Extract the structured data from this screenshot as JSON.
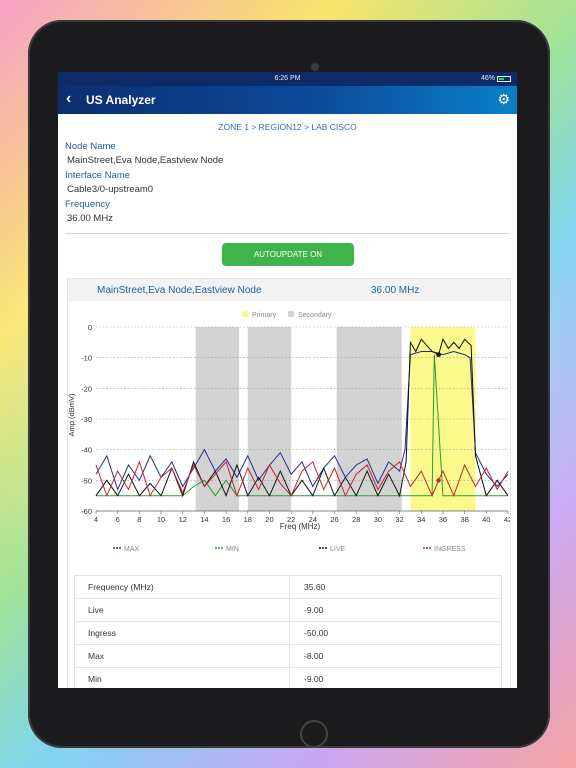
{
  "status_bar": {
    "time": "6:26 PM",
    "battery": "46%"
  },
  "nav": {
    "back_glyph": "‹",
    "title": "US Analyzer",
    "settings_icon": "gear-icon"
  },
  "breadcrumb": "ZONE 1 > REGION12 > LAB CISCO",
  "details": {
    "node_name_label": "Node Name",
    "node_name_value": "MainStreet,Eva Node,Eastview Node",
    "interface_label": "Interface Name",
    "interface_value": "Cable3/0-upstream0",
    "frequency_label": "Frequency",
    "frequency_value": "36.00 MHz"
  },
  "autoupdate_label": "AUTOUPDATE ON",
  "card": {
    "node": "MainStreet,Eva Node,Eastview Node",
    "frequency": "36.00 MHz"
  },
  "colors": {
    "max": "#1f2f8f",
    "min": "#2e9b3a",
    "live": "#111111",
    "ingress": "#c0282f",
    "primary": "#fbf98b",
    "secondary": "#d3d3d3",
    "accent": "#3db54a"
  },
  "chart_data": {
    "type": "line",
    "xlabel": "Freq (MHz)",
    "ylabel": "Amp (dBmV)",
    "xlim": [
      4,
      42
    ],
    "ylim": [
      -60,
      0
    ],
    "x_ticks": [
      "4",
      "6",
      "8",
      "10",
      "12",
      "14",
      "16",
      "18",
      "20",
      "22",
      "24",
      "26",
      "28",
      "30",
      "32",
      "34",
      "36",
      "38",
      "40",
      "42"
    ],
    "y_ticks": [
      "0",
      "-10",
      "-20",
      "-30",
      "-40",
      "-50",
      "-60"
    ],
    "band_legend": [
      {
        "name": "Primary"
      },
      {
        "name": "Secondary"
      }
    ],
    "bands": [
      {
        "type": "secondary",
        "from": 13.2,
        "to": 17.2
      },
      {
        "type": "secondary",
        "from": 18.0,
        "to": 22.0
      },
      {
        "type": "secondary",
        "from": 26.2,
        "to": 32.2
      },
      {
        "type": "primary",
        "from": 33.0,
        "to": 39.0
      }
    ],
    "marker": {
      "x": 35.6,
      "y": -9
    },
    "series": [
      {
        "name": "MAX",
        "key": "max",
        "x": [
          4,
          5,
          6,
          7,
          8,
          9,
          10,
          11,
          12,
          13,
          14,
          15,
          16,
          17,
          18,
          19,
          20,
          21,
          22,
          23,
          24,
          25,
          26,
          27,
          28,
          29,
          30,
          31,
          32,
          32.5,
          33,
          34,
          35,
          36,
          37,
          38,
          38.5,
          39,
          40,
          41,
          42
        ],
        "y": [
          -48,
          -42,
          -53,
          -45,
          -50,
          -42,
          -49,
          -44,
          -52,
          -46,
          -40,
          -47,
          -43,
          -49,
          -42,
          -50,
          -45,
          -41,
          -48,
          -44,
          -52,
          -46,
          -42,
          -49,
          -45,
          -43,
          -51,
          -44,
          -47,
          -40,
          -9,
          -8,
          -8,
          -9,
          -8,
          -9,
          -10,
          -41,
          -48,
          -52,
          -48
        ]
      },
      {
        "name": "MIN",
        "key": "min",
        "x": [
          4,
          6,
          8,
          10,
          12,
          13,
          14,
          15,
          16,
          17,
          18,
          20,
          22,
          24,
          26,
          28,
          30,
          32,
          33,
          34,
          35,
          35.2,
          36,
          38,
          40,
          42
        ],
        "y": [
          -55,
          -55,
          -55,
          -55,
          -55,
          -52,
          -50,
          -55,
          -50,
          -55,
          -55,
          -55,
          -55,
          -55,
          -55,
          -55,
          -55,
          -55,
          -55,
          -55,
          -55,
          -9,
          -55,
          -55,
          -55,
          -55
        ]
      },
      {
        "name": "LIVE",
        "key": "live",
        "x": [
          4,
          5,
          6,
          7,
          8,
          9,
          10,
          11,
          12,
          13,
          14,
          15,
          16,
          17,
          18,
          19,
          20,
          21,
          22,
          23,
          24,
          25,
          26,
          27,
          28,
          29,
          30,
          31,
          32,
          32.6,
          33,
          33.5,
          34,
          34.5,
          35,
          35.6,
          36,
          36.5,
          37,
          37.5,
          38,
          38.6,
          39,
          40,
          41,
          42
        ],
        "y": [
          -55,
          -50,
          -55,
          -48,
          -55,
          -51,
          -55,
          -46,
          -55,
          -44,
          -52,
          -47,
          -55,
          -45,
          -55,
          -49,
          -55,
          -47,
          -55,
          -50,
          -55,
          -46,
          -55,
          -49,
          -55,
          -47,
          -55,
          -48,
          -55,
          -44,
          -5,
          -8,
          -4,
          -6,
          -8,
          -9,
          -4,
          -7,
          -5,
          -7,
          -4,
          -6,
          -42,
          -55,
          -50,
          -55
        ]
      },
      {
        "name": "INGRESS",
        "key": "ingress",
        "x": [
          4,
          5,
          6,
          7,
          8,
          9,
          10,
          11,
          12,
          13,
          14,
          15,
          16,
          17,
          18,
          19,
          20,
          21,
          22,
          23,
          24,
          25,
          26,
          27,
          28,
          29,
          30,
          31,
          32,
          33,
          34,
          35,
          35.6,
          36,
          37,
          38,
          39,
          40,
          41,
          42
        ],
        "y": [
          -45,
          -55,
          -47,
          -53,
          -44,
          -55,
          -49,
          -46,
          -54,
          -45,
          -52,
          -48,
          -44,
          -55,
          -46,
          -53,
          -45,
          -51,
          -55,
          -47,
          -44,
          -53,
          -46,
          -55,
          -48,
          -45,
          -53,
          -47,
          -44,
          -52,
          -47,
          -55,
          -50,
          -47,
          -55,
          -45,
          -52,
          -46,
          -53,
          -47
        ]
      }
    ],
    "legend_position": "bottom"
  },
  "table": [
    {
      "label": "Frequency (MHz)",
      "value": "35.60"
    },
    {
      "label": "Live",
      "value": "-9.00"
    },
    {
      "label": "Ingress",
      "value": "-50.00"
    },
    {
      "label": "Max",
      "value": "-8.00"
    },
    {
      "label": "Min",
      "value": "-9.00"
    }
  ]
}
